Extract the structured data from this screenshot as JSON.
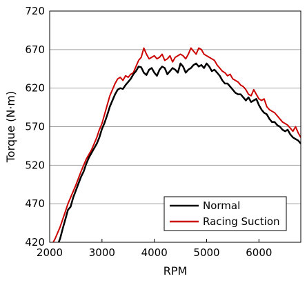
{
  "chart_data": {
    "type": "line",
    "title": "",
    "xlabel": "RPM",
    "ylabel": "Torque (N·m)",
    "xlim": [
      2000,
      6800
    ],
    "ylim": [
      420,
      720
    ],
    "xticks": [
      2000,
      3000,
      4000,
      5000,
      6000
    ],
    "yticks": [
      420,
      470,
      520,
      570,
      620,
      670,
      720
    ],
    "grid": "horizontal",
    "legend_position": "bottom-right",
    "series": [
      {
        "name": "Normal",
        "color": "#000000",
        "x": [
          2150,
          2200,
          2250,
          2300,
          2350,
          2400,
          2450,
          2500,
          2550,
          2600,
          2650,
          2700,
          2750,
          2800,
          2850,
          2900,
          2950,
          3000,
          3050,
          3100,
          3150,
          3200,
          3250,
          3300,
          3350,
          3400,
          3450,
          3500,
          3550,
          3600,
          3650,
          3700,
          3750,
          3800,
          3850,
          3900,
          3950,
          4000,
          4050,
          4100,
          4150,
          4200,
          4250,
          4300,
          4350,
          4400,
          4450,
          4500,
          4550,
          4600,
          4650,
          4700,
          4750,
          4800,
          4850,
          4900,
          4950,
          5000,
          5050,
          5100,
          5150,
          5200,
          5250,
          5300,
          5350,
          5400,
          5450,
          5500,
          5550,
          5600,
          5650,
          5700,
          5750,
          5800,
          5850,
          5900,
          5950,
          6000,
          6050,
          6100,
          6150,
          6200,
          6250,
          6300,
          6350,
          6400,
          6450,
          6500,
          6550,
          6600,
          6650,
          6700,
          6750,
          6800
        ],
        "values": [
          416,
          425,
          438,
          450,
          462,
          466,
          478,
          487,
          496,
          505,
          512,
          522,
          530,
          536,
          542,
          548,
          556,
          567,
          575,
          585,
          596,
          604,
          612,
          618,
          620,
          619,
          624,
          628,
          632,
          638,
          642,
          648,
          647,
          640,
          637,
          644,
          646,
          640,
          636,
          644,
          648,
          646,
          638,
          642,
          646,
          644,
          640,
          652,
          648,
          640,
          644,
          646,
          650,
          652,
          648,
          650,
          646,
          652,
          648,
          642,
          644,
          640,
          636,
          630,
          626,
          626,
          622,
          618,
          614,
          612,
          612,
          608,
          604,
          608,
          602,
          604,
          606,
          598,
          592,
          588,
          586,
          580,
          576,
          576,
          572,
          570,
          566,
          564,
          566,
          560,
          556,
          554,
          552,
          548
        ],
        "line_width": 2.5
      },
      {
        "name": "Racing Suction",
        "color": "#cc0000",
        "x": [
          2000,
          2050,
          2100,
          2150,
          2200,
          2250,
          2300,
          2350,
          2400,
          2450,
          2500,
          2550,
          2600,
          2650,
          2700,
          2750,
          2800,
          2850,
          2900,
          2950,
          3000,
          3050,
          3100,
          3150,
          3200,
          3250,
          3300,
          3350,
          3400,
          3450,
          3500,
          3550,
          3600,
          3650,
          3700,
          3750,
          3800,
          3850,
          3900,
          3950,
          4000,
          4050,
          4100,
          4150,
          4200,
          4250,
          4300,
          4350,
          4400,
          4450,
          4500,
          4550,
          4600,
          4650,
          4700,
          4750,
          4800,
          4850,
          4900,
          4950,
          5000,
          5050,
          5100,
          5150,
          5200,
          5250,
          5300,
          5350,
          5400,
          5450,
          5500,
          5550,
          5600,
          5650,
          5700,
          5750,
          5800,
          5850,
          5900,
          5950,
          6000,
          6050,
          6100,
          6150,
          6200,
          6250,
          6300,
          6350,
          6400,
          6450,
          6500,
          6550,
          6600,
          6650,
          6700,
          6750,
          6800
        ],
        "values": [
          416,
          418,
          424,
          432,
          440,
          450,
          460,
          470,
          478,
          486,
          494,
          503,
          512,
          520,
          528,
          534,
          540,
          548,
          556,
          566,
          574,
          586,
          598,
          610,
          618,
          626,
          632,
          634,
          630,
          636,
          634,
          638,
          640,
          648,
          656,
          660,
          672,
          664,
          658,
          660,
          662,
          658,
          660,
          664,
          656,
          658,
          662,
          654,
          660,
          662,
          664,
          662,
          658,
          664,
          672,
          668,
          664,
          672,
          670,
          664,
          662,
          660,
          658,
          656,
          650,
          646,
          642,
          640,
          636,
          638,
          632,
          630,
          628,
          624,
          622,
          618,
          612,
          610,
          618,
          612,
          606,
          604,
          606,
          596,
          592,
          590,
          588,
          584,
          580,
          576,
          574,
          572,
          568,
          564,
          570,
          562,
          556
        ]
      }
    ]
  }
}
